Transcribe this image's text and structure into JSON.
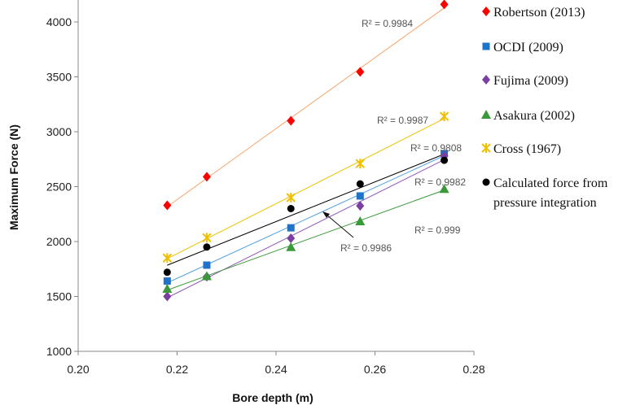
{
  "chart_data": {
    "type": "scatter",
    "title": "",
    "xlabel": "Bore depth (m)",
    "ylabel": "Maximum Force (N)",
    "xlim": [
      0.2,
      0.28
    ],
    "ylim": [
      1000,
      4200
    ],
    "xticks": [
      "0.20",
      "0.22",
      "0.24",
      "0.26",
      "0.28"
    ],
    "yticks": [
      "1000",
      "1500",
      "2000",
      "2500",
      "3000",
      "3500",
      "4000"
    ],
    "grid": false,
    "legend_position": "right",
    "x": [
      0.218,
      0.226,
      0.243,
      0.257,
      0.274
    ],
    "series": [
      {
        "name": "Robertson (2013)",
        "marker": "diamond",
        "color": "#ff0000",
        "trend_color": "#f4a46a",
        "values": [
          2330,
          2590,
          3100,
          3545,
          4160
        ],
        "r2": "R² = 0.9984"
      },
      {
        "name": "OCDI (2009)",
        "marker": "square",
        "color": "#1f73c9",
        "trend_color": "#4a9ee0",
        "values": [
          1640,
          1785,
          2125,
          2415,
          2800
        ],
        "r2": "R² = 0.9808"
      },
      {
        "name": "Fujima (2009)",
        "marker": "diamond",
        "color": "#7a3fa0",
        "trend_color": "#8c5ab8",
        "values": [
          1500,
          1680,
          2030,
          2325,
          2780
        ],
        "r2": "R² = 0.9982"
      },
      {
        "name": "Asakura (2002)",
        "marker": "triangle",
        "color": "#3a9a3a",
        "trend_color": "#3a9a3a",
        "values": [
          1570,
          1685,
          1950,
          2185,
          2480
        ],
        "r2": "R² = 0.999"
      },
      {
        "name": "Cross (1967)",
        "marker": "star",
        "color": "#f0c000",
        "trend_color": "#f0c000",
        "values": [
          1850,
          2035,
          2400,
          2710,
          3140
        ],
        "r2": "R² = 0.9987"
      },
      {
        "name_lines": [
          "Calculated force from",
          "pressure integration"
        ],
        "marker": "circle",
        "color": "#000000",
        "trend_color": "#000000",
        "values": [
          1720,
          1950,
          2300,
          2525,
          2740
        ],
        "r2": "R² = 0.9986"
      }
    ]
  }
}
